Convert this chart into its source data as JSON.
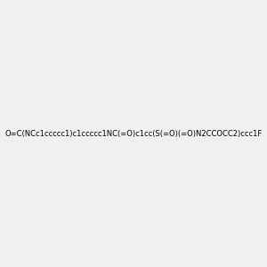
{
  "smiles": "O=C(NCc1ccccc1)c1ccccc1NC(=O)c1cc(S(=O)(=O)N2CCOCC2)ccc1F",
  "background_color": "#f0f0f0",
  "figure_width": 3.0,
  "figure_height": 3.0,
  "dpi": 100,
  "title": "",
  "atom_colors": {
    "N": "#0000ff",
    "O": "#ff0000",
    "F": "#ff69b4",
    "S": "#cccc00",
    "C": "#000000"
  }
}
